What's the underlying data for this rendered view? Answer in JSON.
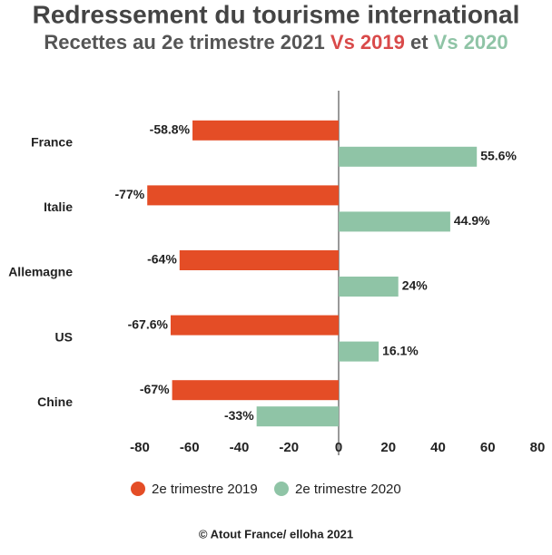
{
  "chart_data": {
    "type": "bar",
    "orientation": "horizontal",
    "title": "Redressement du tourisme international",
    "subtitle": {
      "text": "Recettes au 2e trimestre 2021",
      "highlight_1": "Vs 2019",
      "connector": "et",
      "highlight_2": "Vs 2020"
    },
    "categories": [
      "France",
      "Italie",
      "Allemagne",
      "US",
      "Chine"
    ],
    "series": [
      {
        "name": "2e trimestre 2019",
        "color": "#e44d26",
        "values": [
          -58.8,
          -77,
          -64,
          -67.6,
          -67
        ],
        "value_labels": [
          "-58.8%",
          "-77%",
          "-64%",
          "-67.6%",
          "-67%"
        ]
      },
      {
        "name": "2e trimestre 2020",
        "color": "#8fc4a6",
        "values": [
          55.6,
          44.9,
          24,
          16.1,
          -33
        ],
        "value_labels": [
          "55.6%",
          "44.9%",
          "24%",
          "16.1%",
          "-33%"
        ]
      }
    ],
    "xlim": [
      -80,
      80
    ],
    "xticks": [
      -80,
      -60,
      -40,
      -20,
      0,
      20,
      40,
      60,
      80
    ],
    "legend": "bottom",
    "source": "© Atout France/ elloha 2021"
  }
}
